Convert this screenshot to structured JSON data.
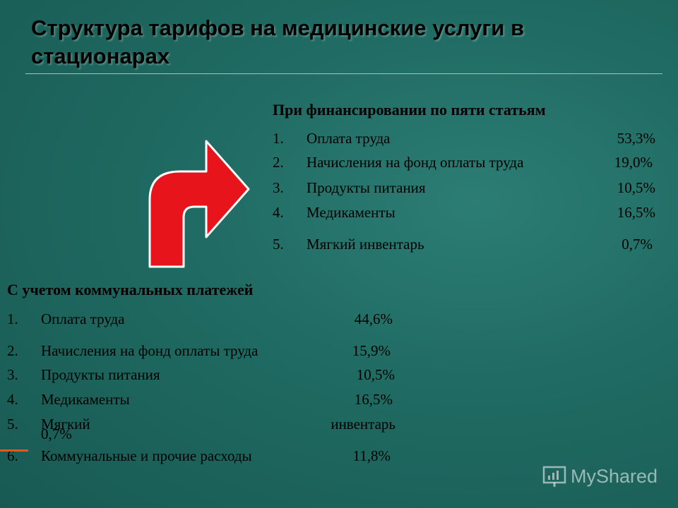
{
  "title": "Структура тарифов на медицинские услуги в стационарах",
  "section_five": {
    "heading": "При финансировании по пяти статьям",
    "items": [
      {
        "num": "1.",
        "label": "Оплата труда",
        "pct": "53,3%"
      },
      {
        "num": "2.",
        "label": "Начисления на фонд оплаты труда",
        "pct": "19,0%"
      },
      {
        "num": "3.",
        "label": "Продукты питания",
        "pct": "10,5%"
      },
      {
        "num": "4.",
        "label": "Медикаменты",
        "pct": "16,5%"
      },
      {
        "num": "5.",
        "label": "Мягкий инвентарь",
        "pct": "0,7%"
      }
    ]
  },
  "section_utilities": {
    "heading": "С учетом коммунальных платежей",
    "items": [
      {
        "num": "1.",
        "label": "Оплата труда",
        "pct": "44,6%"
      },
      {
        "num": "2.",
        "label": "Начисления на фонд оплаты труда",
        "pct": "15,9%"
      },
      {
        "num": "3.",
        "label": "Продукты питания",
        "pct": "10,5%"
      },
      {
        "num": "4.",
        "label": "Медикаменты",
        "pct": "16,5%"
      },
      {
        "num": "5.",
        "label_part1": "Мягкий",
        "label_part2": "инвентарь",
        "pct": "0,7%"
      },
      {
        "num": "6.",
        "label": "Коммунальные и прочие расходы",
        "pct": "11,8%"
      }
    ]
  },
  "arrow": {
    "icon": "curved-arrow-right-icon",
    "color": "#e8141c",
    "outline": "#ffffff"
  },
  "logo": {
    "text": "MyShared",
    "icon": "presentation-board-icon"
  }
}
